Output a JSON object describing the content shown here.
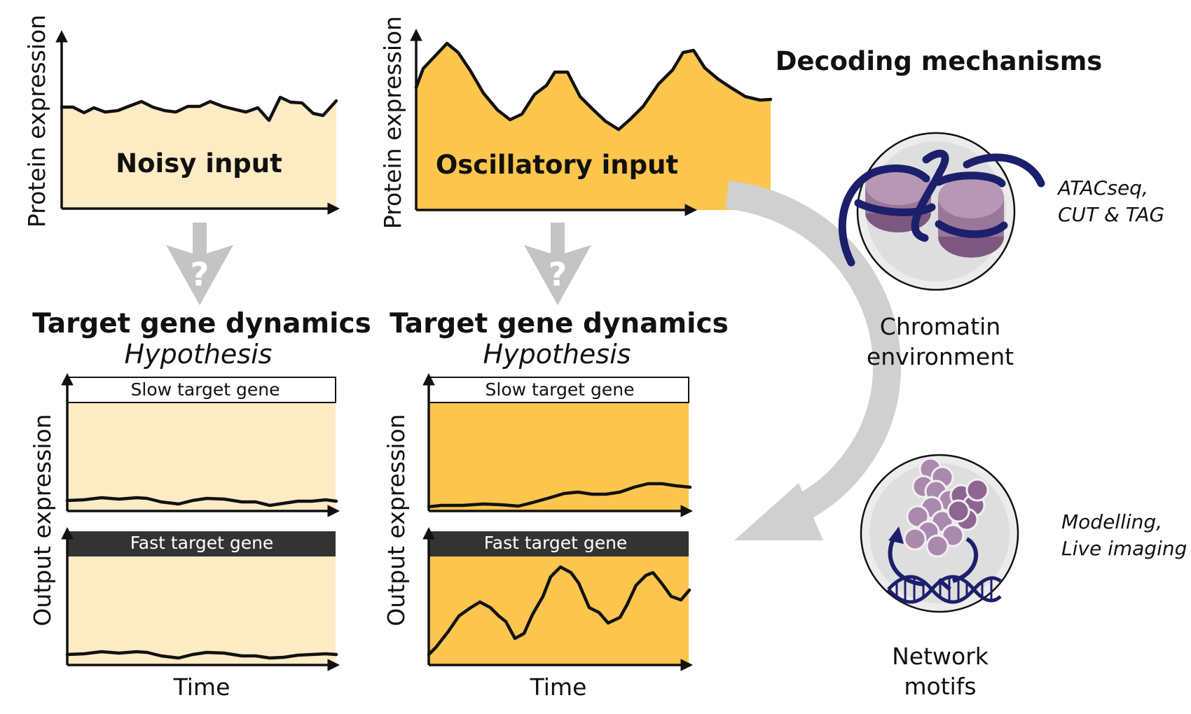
{
  "header": "Decoding mechanisms",
  "colors": {
    "noisy_fill": "#fdebc4",
    "osc_fill": "#fcc54d",
    "dark_header": "#333333",
    "navy": "#1c1f6b",
    "purple": "#a07aa0",
    "grey_arrow": "#cccccc"
  },
  "panels": [
    {
      "input_label": "Noisy input",
      "y_label": "Protein expression",
      "question_mark": "?",
      "title": "Target gene dynamics",
      "subtitle": "Hypothesis",
      "output_y_label": "Output expression",
      "slow_label": "Slow target gene",
      "fast_label": "Fast target gene",
      "x_label": "Time"
    },
    {
      "input_label": "Oscillatory input",
      "y_label": "Protein expression",
      "question_mark": "?",
      "title": "Target gene dynamics",
      "subtitle": "Hypothesis",
      "output_y_label": "Output expression",
      "slow_label": "Slow target gene",
      "fast_label": "Fast target gene",
      "x_label": "Time"
    }
  ],
  "mechanisms": [
    {
      "label_line1": "Chromatin",
      "label_line2": "environment",
      "method_line1": "ATACseq,",
      "method_line2": "CUT & TAG",
      "icon": "nucleosome-icon"
    },
    {
      "label_line1": "Network",
      "label_line2": "motifs",
      "method_line1": "Modelling,",
      "method_line2": "Live imaging",
      "icon": "protein-dna-icon"
    }
  ]
}
